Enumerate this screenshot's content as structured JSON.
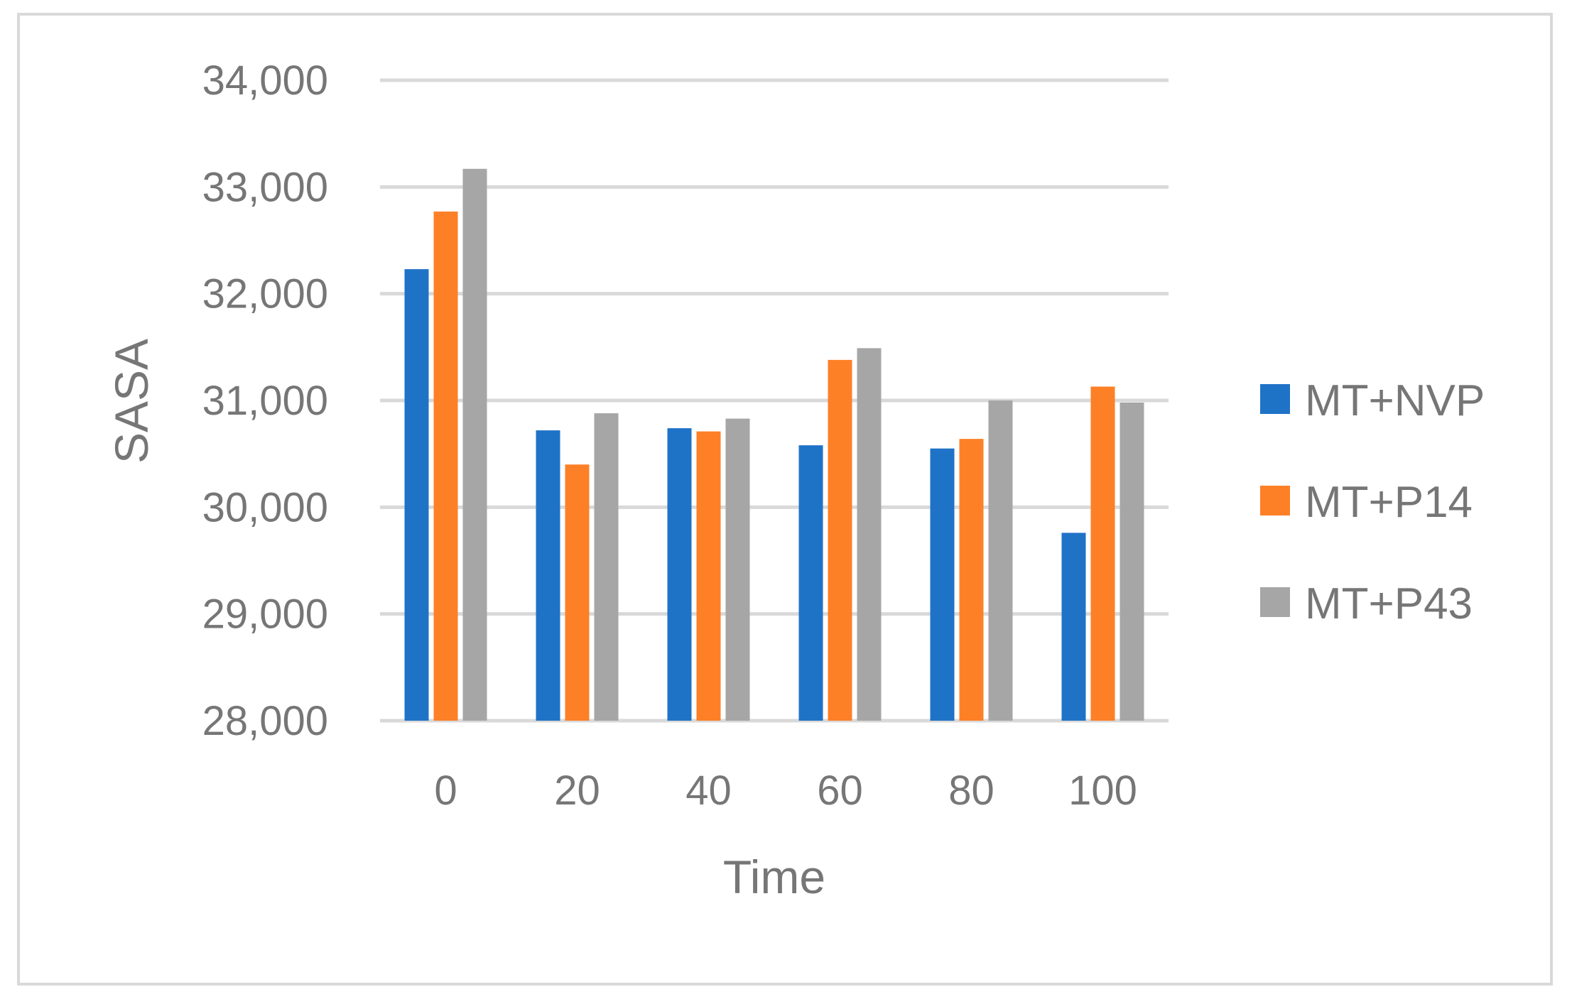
{
  "chart_data": {
    "type": "bar",
    "xlabel": "Time",
    "ylabel": "SASA",
    "categories": [
      "0",
      "20",
      "40",
      "60",
      "80",
      "100"
    ],
    "ylim": [
      28000,
      34000
    ],
    "yticks": [
      28000,
      29000,
      30000,
      31000,
      32000,
      33000,
      34000
    ],
    "ytick_labels": [
      "28,000",
      "29,000",
      "30,000",
      "31,000",
      "32,000",
      "33,000",
      "34,000"
    ],
    "grid": true,
    "legend_position": "right",
    "series": [
      {
        "name": "MT+NVP",
        "color": "#1f73c7",
        "values": [
          32230,
          30720,
          30740,
          30580,
          30550,
          29760
        ]
      },
      {
        "name": "MT+P14",
        "color": "#fd8027",
        "values": [
          32770,
          30400,
          30710,
          31380,
          30640,
          31130
        ]
      },
      {
        "name": "MT+P43",
        "color": "#a6a6a6",
        "values": [
          33170,
          30880,
          30830,
          31490,
          31000,
          30980
        ]
      }
    ]
  }
}
